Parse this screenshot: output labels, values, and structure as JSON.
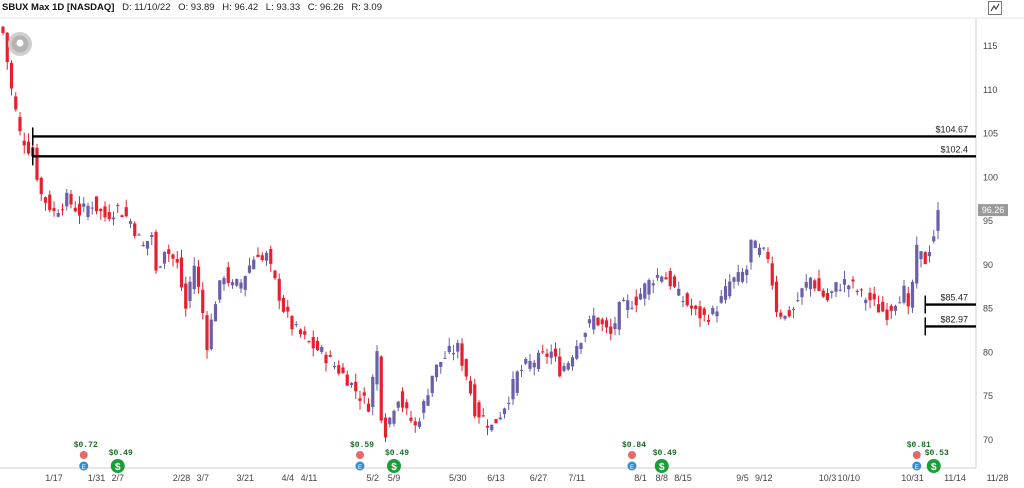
{
  "header": {
    "symbol": "SBUX Max 1D [NASDAQ]",
    "date": "D: 11/10/22",
    "open": "O: 93.89",
    "high": "H: 96.42",
    "low": "L: 93.33",
    "close": "C: 96.26",
    "range": "R: 3.09"
  },
  "chart_data": {
    "type": "candlestick",
    "ylim": [
      66,
      119
    ],
    "y_ticks": [
      70,
      75,
      80,
      85,
      90,
      95,
      100,
      105,
      110,
      115
    ],
    "x_ticks": [
      {
        "label": "1/17",
        "x": 12
      },
      {
        "label": "1/31",
        "x": 22
      },
      {
        "label": "2/7",
        "x": 27
      },
      {
        "label": "2/28",
        "x": 42
      },
      {
        "label": "3/7",
        "x": 47
      },
      {
        "label": "3/21",
        "x": 57
      },
      {
        "label": "4/4",
        "x": 67
      },
      {
        "label": "4/11",
        "x": 72
      },
      {
        "label": "5/2",
        "x": 87
      },
      {
        "label": "5/9",
        "x": 92
      },
      {
        "label": "5/30",
        "x": 107
      },
      {
        "label": "6/13",
        "x": 116
      },
      {
        "label": "6/27",
        "x": 126
      },
      {
        "label": "7/11",
        "x": 135
      },
      {
        "label": "8/1",
        "x": 150
      },
      {
        "label": "8/8",
        "x": 155
      },
      {
        "label": "8/15",
        "x": 160
      },
      {
        "label": "9/5",
        "x": 174
      },
      {
        "label": "9/12",
        "x": 179
      },
      {
        "label": "10/3",
        "x": 194
      },
      {
        "label": "10/10",
        "x": 199
      },
      {
        "label": "10/31",
        "x": 214
      },
      {
        "label": "11/14",
        "x": 224
      },
      {
        "label": "11/28",
        "x": 234
      }
    ],
    "price_levels": [
      {
        "label": "$104.67",
        "value": 104.67,
        "from_x": 7
      },
      {
        "label": "$102.4",
        "value": 102.4,
        "from_x": 7
      },
      {
        "label": "$85.47",
        "value": 85.47,
        "from_x": 217
      },
      {
        "label": "$82.97",
        "value": 82.97,
        "from_x": 217
      }
    ],
    "last_price": {
      "label": "96.26",
      "value": 96.26
    },
    "up_color": "#6b5fa8",
    "down_color": "#e8202e",
    "level_color": "#000000",
    "events": [
      {
        "type": "dividend",
        "label": "$0.72",
        "x": 19,
        "row": 0
      },
      {
        "type": "earnings",
        "x": 19,
        "row": 1
      },
      {
        "type": "dividend-paid",
        "label": "$0.49",
        "x": 27,
        "row": 1
      },
      {
        "type": "dividend",
        "label": "$0.59",
        "x": 84,
        "row": 0
      },
      {
        "type": "earnings",
        "x": 84,
        "row": 1
      },
      {
        "type": "dividend-paid",
        "label": "$0.49",
        "x": 92,
        "row": 1
      },
      {
        "type": "dividend",
        "label": "$0.84",
        "x": 148,
        "row": 0
      },
      {
        "type": "earnings",
        "x": 148,
        "row": 1
      },
      {
        "type": "dividend-paid",
        "label": "$0.49",
        "x": 155,
        "row": 1
      },
      {
        "type": "dividend",
        "label": "$0.81",
        "x": 215,
        "row": 0
      },
      {
        "type": "earnings",
        "x": 215,
        "row": 1
      },
      {
        "type": "dividend-paid",
        "label": "$0.53",
        "x": 219,
        "row": 1
      }
    ],
    "anchors": [
      [
        0,
        116.5
      ],
      [
        2,
        110
      ],
      [
        4,
        105
      ],
      [
        7,
        102.5
      ],
      [
        9,
        98
      ],
      [
        12,
        96
      ],
      [
        15,
        97.5
      ],
      [
        18,
        96
      ],
      [
        21,
        97
      ],
      [
        24,
        95.5
      ],
      [
        27,
        96.5
      ],
      [
        30,
        95
      ],
      [
        33,
        92
      ],
      [
        35,
        93.5
      ],
      [
        36,
        89
      ],
      [
        38,
        92
      ],
      [
        41,
        90
      ],
      [
        43,
        85
      ],
      [
        44,
        88
      ],
      [
        45,
        90
      ],
      [
        47,
        84.5
      ],
      [
        48,
        81
      ],
      [
        50,
        86
      ],
      [
        52,
        89
      ],
      [
        54,
        87.5
      ],
      [
        56,
        88
      ],
      [
        58,
        90
      ],
      [
        60,
        91.5
      ],
      [
        61,
        90.5
      ],
      [
        62,
        91
      ],
      [
        64,
        88
      ],
      [
        66,
        85
      ],
      [
        68,
        83
      ],
      [
        70,
        82
      ],
      [
        72,
        81
      ],
      [
        75,
        80
      ],
      [
        78,
        78.5
      ],
      [
        81,
        77
      ],
      [
        84,
        75
      ],
      [
        86,
        74
      ],
      [
        88,
        80
      ],
      [
        89,
        73
      ],
      [
        90,
        71
      ],
      [
        92,
        74
      ],
      [
        93,
        75
      ],
      [
        95,
        73
      ],
      [
        97,
        71.5
      ],
      [
        99,
        74
      ],
      [
        101,
        77.5
      ],
      [
        103,
        79
      ],
      [
        105,
        80
      ],
      [
        107,
        80.5
      ],
      [
        109,
        77.5
      ],
      [
        111,
        73.5
      ],
      [
        113,
        72.5
      ],
      [
        115,
        71.5
      ],
      [
        117,
        73
      ],
      [
        119,
        75
      ],
      [
        121,
        77.5
      ],
      [
        123,
        78.5
      ],
      [
        125,
        79
      ],
      [
        127,
        79.5
      ],
      [
        129,
        80
      ],
      [
        131,
        78
      ],
      [
        133,
        79
      ],
      [
        135,
        81
      ],
      [
        137,
        82.5
      ],
      [
        139,
        84
      ],
      [
        141,
        83
      ],
      [
        143,
        82
      ],
      [
        145,
        85
      ],
      [
        147,
        85.5
      ],
      [
        149,
        86
      ],
      [
        151,
        87.5
      ],
      [
        153,
        88.5
      ],
      [
        155,
        89
      ],
      [
        157,
        88
      ],
      [
        159,
        86.5
      ],
      [
        161,
        85.5
      ],
      [
        163,
        84.5
      ],
      [
        165,
        84
      ],
      [
        167,
        84.5
      ],
      [
        169,
        86
      ],
      [
        171,
        88
      ],
      [
        173,
        88.5
      ],
      [
        175,
        89.5
      ],
      [
        176,
        92.5
      ],
      [
        178,
        91.5
      ],
      [
        180,
        91
      ],
      [
        182,
        85
      ],
      [
        184,
        84
      ],
      [
        186,
        85
      ],
      [
        188,
        87
      ],
      [
        190,
        88.5
      ],
      [
        192,
        87
      ],
      [
        194,
        86
      ],
      [
        196,
        87.5
      ],
      [
        198,
        88
      ],
      [
        200,
        87.5
      ],
      [
        202,
        86.5
      ],
      [
        204,
        86
      ],
      [
        206,
        85
      ],
      [
        208,
        84.5
      ],
      [
        210,
        86
      ],
      [
        212,
        87
      ],
      [
        213,
        84.5
      ],
      [
        215,
        91.5
      ],
      [
        217,
        90.5
      ],
      [
        219,
        93.5
      ],
      [
        220,
        96.26
      ]
    ]
  }
}
